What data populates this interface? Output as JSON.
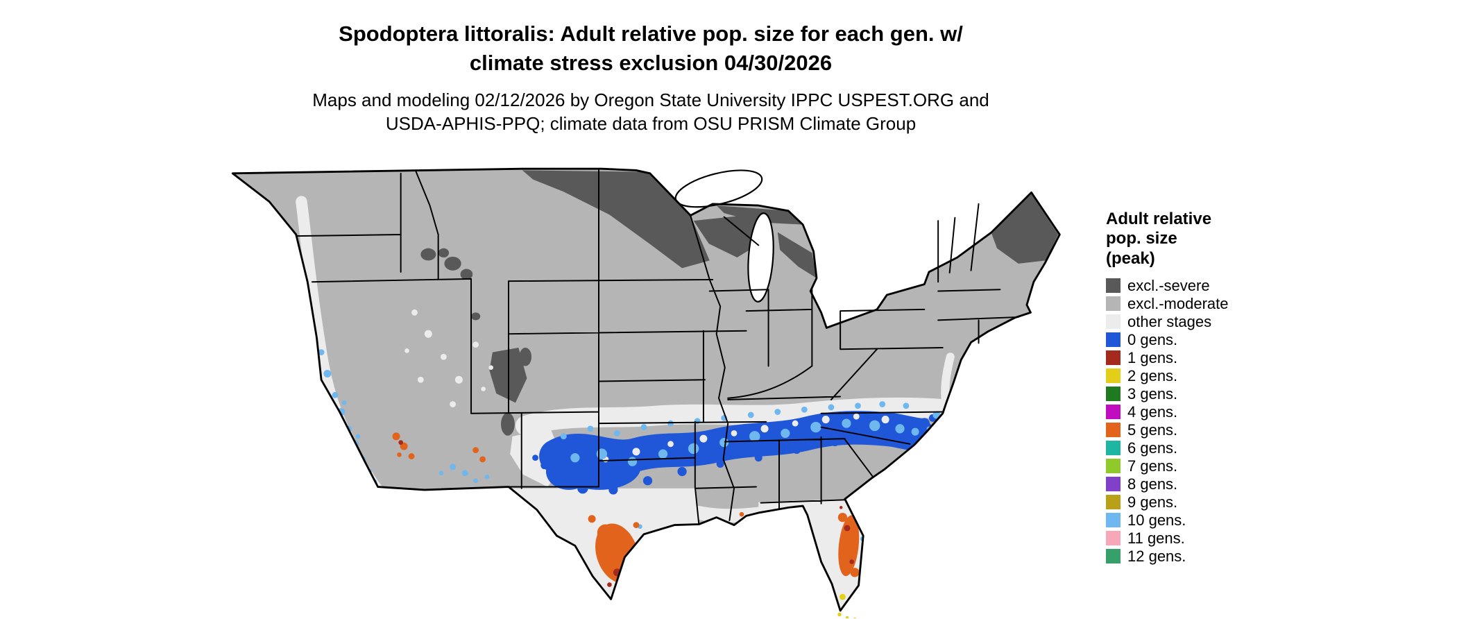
{
  "title": {
    "line1": "Spodoptera littoralis: Adult relative pop. size for each gen. w/",
    "line2": "climate stress exclusion 04/30/2026"
  },
  "subtitle": {
    "line1": "Maps and modeling 02/12/2026 by Oregon State University IPPC USPEST.ORG and",
    "line2": "USDA-APHIS-PPQ; climate data from OSU PRISM Climate Group"
  },
  "legend": {
    "title_lines": [
      "Adult relative",
      "pop. size",
      "(peak)"
    ],
    "items": [
      {
        "key": "excl_severe",
        "label": "excl.-severe",
        "color": "#595959"
      },
      {
        "key": "excl_moderate",
        "label": "excl.-moderate",
        "color": "#b5b5b5"
      },
      {
        "key": "other_stages",
        "label": "other stages",
        "color": "#ececec"
      },
      {
        "key": "gens_0",
        "label": "0 gens.",
        "color": "#2057d8"
      },
      {
        "key": "gens_1",
        "label": "1 gens.",
        "color": "#a32a1d"
      },
      {
        "key": "gens_2",
        "label": "2 gens.",
        "color": "#e3cf1a"
      },
      {
        "key": "gens_3",
        "label": "3 gens.",
        "color": "#1f7a1f"
      },
      {
        "key": "gens_4",
        "label": "4 gens.",
        "color": "#bf0dbf"
      },
      {
        "key": "gens_5",
        "label": "5 gens.",
        "color": "#e2641c"
      },
      {
        "key": "gens_6",
        "label": "6 gens.",
        "color": "#1fb5a3"
      },
      {
        "key": "gens_7",
        "label": "7 gens.",
        "color": "#8fc92a"
      },
      {
        "key": "gens_8",
        "label": "8 gens.",
        "color": "#8040c8"
      },
      {
        "key": "gens_9",
        "label": "9 gens.",
        "color": "#b8a019"
      },
      {
        "key": "gens_10",
        "label": "10 gens.",
        "color": "#6fb7ef"
      },
      {
        "key": "gens_11",
        "label": "11 gens.",
        "color": "#f7a8b8"
      },
      {
        "key": "gens_12",
        "label": "12 gens.",
        "color": "#35a06a"
      }
    ]
  },
  "map": {
    "background": "#ffffff",
    "border_color": "#000000",
    "water_color": "#ffffff"
  }
}
